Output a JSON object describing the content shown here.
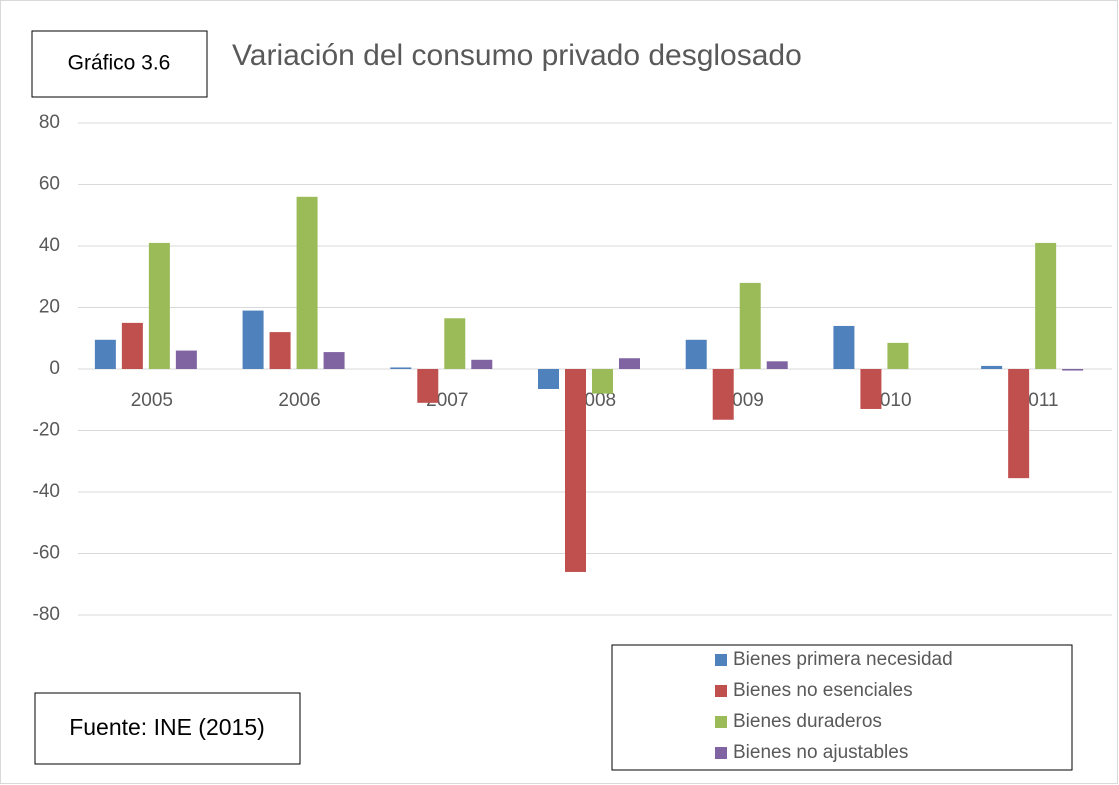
{
  "chart_data": {
    "type": "bar",
    "label": "Gráfico 3.6",
    "title": "Variación del consumo privado desglosado",
    "source": "Fuente: INE (2015)",
    "categories": [
      "2005",
      "2006",
      "2007",
      "2008",
      "2009",
      "2010",
      "2011"
    ],
    "series": [
      {
        "name": "Bienes primera necesidad",
        "color": "#4f81bd",
        "values": [
          9.5,
          19,
          0.5,
          -6.5,
          9.5,
          14,
          1
        ]
      },
      {
        "name": "Bienes no esenciales",
        "color": "#c0504d",
        "values": [
          15,
          12,
          -11,
          -66,
          -16.5,
          -13,
          -35.5
        ]
      },
      {
        "name": "Bienes duraderos",
        "color": "#9bbb59",
        "values": [
          41,
          56,
          16.5,
          -8,
          28,
          8.5,
          41
        ]
      },
      {
        "name": "Bienes no ajustables",
        "color": "#8064a2",
        "values": [
          6,
          5.5,
          3,
          3.5,
          2.5,
          0,
          -0.5
        ]
      }
    ],
    "ylim": [
      -80,
      80
    ],
    "yticks": [
      -80,
      -60,
      -40,
      -20,
      0,
      20,
      40,
      60,
      80
    ],
    "grid": true
  }
}
